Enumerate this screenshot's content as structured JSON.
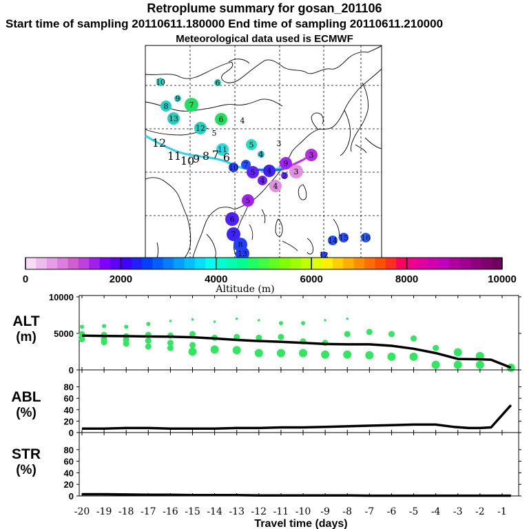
{
  "header": {
    "title": "Retroplume summary for gosan_201106",
    "sampling": "Start time of sampling 20110611.180000      End time of sampling 20110611.210000",
    "meteo": "Meteorological data used is ECMWF"
  },
  "colorbar": {
    "label": "Altitude (m)",
    "ticks": [
      "0",
      "2000",
      "4000",
      "6000",
      "8000",
      "10000"
    ],
    "colors": [
      "#f7dbf7",
      "#efbcef",
      "#e79ce7",
      "#df7ddf",
      "#cf5ecf",
      "#bf3fdf",
      "#9f1fef",
      "#7f00ff",
      "#5f00ff",
      "#3f00ff",
      "#1f1fff",
      "#0040ff",
      "#0060ff",
      "#0080ff",
      "#00a0ff",
      "#00c0ff",
      "#00e0ff",
      "#00ffef",
      "#00ffcf",
      "#00ffaf",
      "#00ff8f",
      "#20ff60",
      "#40ff40",
      "#60ff20",
      "#80ff00",
      "#a0ff00",
      "#c0ff00",
      "#e0ff00",
      "#ffef00",
      "#ffcf00",
      "#ffaf00",
      "#ff8f00",
      "#ff6f00",
      "#ff4f00",
      "#ff2f20",
      "#ff005f",
      "#ef008f",
      "#df009f",
      "#cf00af",
      "#bf00bf",
      "#af009f",
      "#9f008f",
      "#8f007f",
      "#7f006f",
      "#6f005f"
    ]
  },
  "map": {
    "plume_labels": [
      {
        "t": "10",
        "c": "#20d0c0"
      },
      {
        "t": "6",
        "c": "#20d0c0"
      },
      {
        "t": "9",
        "c": "#20d0c0"
      },
      {
        "t": "8",
        "c": "#20d0c0"
      },
      {
        "t": "7",
        "c": "#20e060"
      },
      {
        "t": "13",
        "c": "#20d0c0"
      },
      {
        "t": "6",
        "c": "#20e060"
      },
      {
        "t": "4",
        "c": "#ffffff"
      },
      {
        "t": "12",
        "c": "#20d0c0"
      },
      {
        "t": "5",
        "c": "#ffffff"
      },
      {
        "t": "5",
        "c": "#20e0c0"
      },
      {
        "t": "4",
        "c": "#20c0d0"
      },
      {
        "t": "3",
        "c": "#ffffff"
      },
      {
        "t": "11",
        "c": "#20e0e0"
      },
      {
        "t": "10",
        "c": "#2040ff"
      },
      {
        "t": "7",
        "c": "#2050ff"
      },
      {
        "t": "5",
        "c": "#6020ff"
      },
      {
        "t": "4",
        "c": "#4020ff"
      },
      {
        "t": "9",
        "c": "#a020ff"
      },
      {
        "t": "3",
        "c": "#b030e0"
      },
      {
        "t": "3",
        "c": "#e090e0"
      },
      {
        "t": "4",
        "c": "#7020ff"
      },
      {
        "t": "4",
        "c": "#e090e0"
      },
      {
        "t": "2",
        "c": "#6020ff"
      },
      {
        "t": "5",
        "c": "#a020f0"
      },
      {
        "t": "6",
        "c": "#5020ff"
      },
      {
        "t": "7",
        "c": "#4020ff"
      },
      {
        "t": "8",
        "c": "#2040ff"
      },
      {
        "t": "13",
        "c": "#2040ff"
      },
      {
        "t": "14",
        "c": "#2050ff"
      },
      {
        "t": "15",
        "c": "#2050ff"
      },
      {
        "t": "16",
        "c": "#2060ff"
      },
      {
        "t": "12",
        "c": "#2040ff"
      }
    ],
    "black_labels": [
      "12",
      "11",
      "10",
      "9",
      "8",
      "7",
      "6"
    ]
  },
  "panels": {
    "alt": {
      "label1": "ALT",
      "label2": "(m)",
      "yticks": [
        "10000",
        "5000",
        "0"
      ]
    },
    "abl": {
      "label1": "ABL",
      "label2": "(%)",
      "yticks": [
        "80",
        "60",
        "40",
        "20",
        "0"
      ]
    },
    "str": {
      "label1": "STR",
      "label2": "(%)",
      "yticks": [
        "80",
        "60",
        "40",
        "20",
        "0"
      ]
    }
  },
  "xaxis": {
    "ticks": [
      "-20",
      "-19",
      "-18",
      "-17",
      "-16",
      "-15",
      "-14",
      "-13",
      "-12",
      "-11",
      "-10",
      "-9",
      "-8",
      "-7",
      "-6",
      "-5",
      "-4",
      "-3",
      "-2",
      "-1"
    ],
    "label": "Travel time (days)"
  },
  "chart_data": [
    {
      "type": "line",
      "title": "ALT",
      "ylabel": "ALT (m)",
      "xlabel": "Travel time (days)",
      "ylim": [
        0,
        10000
      ],
      "xlim": [
        -20,
        -0.5
      ],
      "x": [
        -20,
        -19,
        -18,
        -17,
        -16,
        -15,
        -14,
        -13,
        -12,
        -11,
        -10,
        -9,
        -8,
        -7,
        -6,
        -5,
        -4,
        -3,
        -2,
        -1.5,
        -0.6
      ],
      "values": [
        4700,
        4650,
        4620,
        4580,
        4550,
        4470,
        4300,
        4100,
        3950,
        3850,
        3700,
        3550,
        3500,
        3500,
        3300,
        2900,
        2300,
        1500,
        1450,
        1400,
        300
      ],
      "scatter_x": [
        -20,
        -20,
        -20,
        -20,
        -19,
        -19,
        -19,
        -19,
        -18,
        -18,
        -18,
        -18,
        -17,
        -17,
        -17,
        -17,
        -16,
        -16,
        -16,
        -16,
        -15,
        -15,
        -15,
        -15,
        -14,
        -14,
        -14,
        -13,
        -13,
        -13,
        -12,
        -12,
        -12,
        -11,
        -11,
        -11,
        -10,
        -10,
        -10,
        -9,
        -9,
        -9,
        -8,
        -8,
        -8,
        -7,
        -7,
        -6,
        -6,
        -5,
        -5,
        -4,
        -4,
        -3,
        -3,
        -2,
        -2,
        -0.6
      ],
      "scatter_y": [
        5900,
        4700,
        4200,
        4900,
        6000,
        4800,
        4200,
        3800,
        5900,
        4600,
        4100,
        3600,
        6300,
        4800,
        4000,
        3200,
        6700,
        4700,
        3700,
        3000,
        6900,
        4900,
        3400,
        2500,
        6600,
        4400,
        2800,
        7000,
        4500,
        2700,
        6800,
        4400,
        2300,
        6400,
        4500,
        2300,
        6400,
        3900,
        2300,
        6800,
        3700,
        2100,
        7000,
        4900,
        2100,
        5200,
        2000,
        4900,
        1800,
        4300,
        1800,
        3000,
        700,
        2400,
        700,
        1900,
        700,
        300
      ]
    },
    {
      "type": "line",
      "title": "ABL",
      "ylabel": "ABL (%)",
      "xlabel": "Travel time (days)",
      "ylim": [
        0,
        100
      ],
      "xlim": [
        -20,
        -0.5
      ],
      "x": [
        -20,
        -19,
        -18,
        -17,
        -16,
        -15,
        -14,
        -13,
        -12,
        -11,
        -10,
        -9,
        -8,
        -7,
        -6,
        -5,
        -4,
        -3.2,
        -2.5,
        -2,
        -1.5,
        -0.6
      ],
      "values": [
        7,
        7,
        8,
        8,
        7,
        7,
        7,
        8,
        8,
        9,
        9,
        10,
        11,
        12,
        13,
        14,
        14,
        10,
        8,
        8,
        9,
        48
      ]
    },
    {
      "type": "line",
      "title": "STR",
      "ylabel": "STR (%)",
      "xlabel": "Travel time (days)",
      "ylim": [
        0,
        100
      ],
      "xlim": [
        -20,
        -0.5
      ],
      "x": [
        -20,
        -19,
        -18,
        -17,
        -16,
        -15,
        -14,
        -13,
        -12,
        -11,
        -10,
        -9,
        -8,
        -7,
        -6,
        -5,
        -4,
        -3,
        -2,
        -1,
        -0.6
      ],
      "values": [
        3,
        3,
        2.5,
        2,
        2,
        1.5,
        1.5,
        1.5,
        1,
        1,
        1,
        1,
        1,
        0.5,
        0.5,
        0.5,
        0.5,
        0.5,
        0.5,
        0.5,
        0.5
      ]
    }
  ]
}
